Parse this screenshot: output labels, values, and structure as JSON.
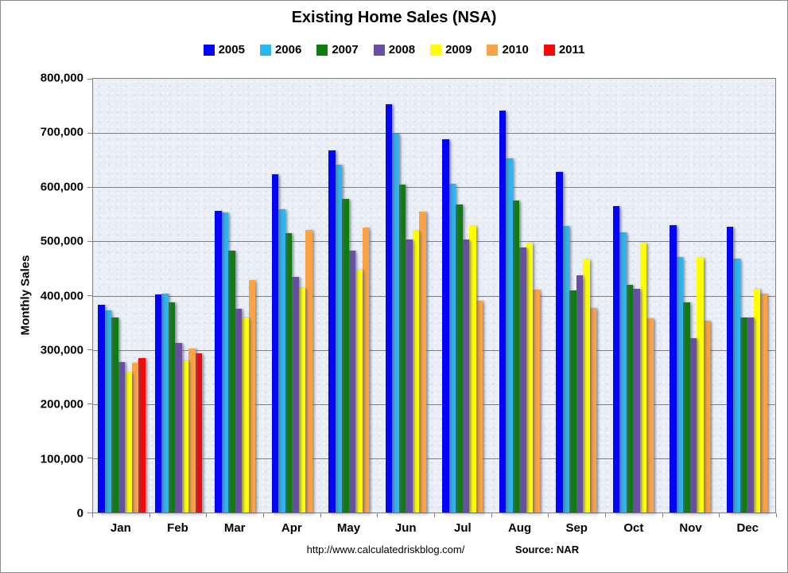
{
  "header": {
    "title": "Existing Home Sales (NSA)"
  },
  "footer": {
    "url": "http://www.calculatedriskblog.com/",
    "source": "Source: NAR"
  },
  "colors": {
    "plot_background": "#E9EEF6",
    "gridline": "#7f7f7f",
    "text": "#000000"
  },
  "chart_data": {
    "type": "bar",
    "title": "Existing Home Sales (NSA)",
    "xlabel": "",
    "ylabel": "Monthly Sales",
    "ylim": [
      0,
      800000
    ],
    "ytick_step": 100000,
    "ytick_labels_top_to_bottom": [
      "800,000",
      "700,000",
      "600,000",
      "500,000",
      "400,000",
      "300,000",
      "200,000",
      "100,000",
      "0"
    ],
    "grid": true,
    "legend_position": "top",
    "categories": [
      "Jan",
      "Feb",
      "Mar",
      "Apr",
      "May",
      "Jun",
      "Jul",
      "Aug",
      "Sep",
      "Oct",
      "Nov",
      "Dec"
    ],
    "series": [
      {
        "name": "2005",
        "color": "#0404F8",
        "values": [
          383000,
          402000,
          557000,
          624000,
          668000,
          753000,
          689000,
          742000,
          628000,
          565000,
          530000,
          527000
        ]
      },
      {
        "name": "2006",
        "color": "#2EB5EE",
        "values": [
          373000,
          403000,
          553000,
          560000,
          641000,
          699000,
          606000,
          653000,
          528000,
          516000,
          471000,
          468000
        ]
      },
      {
        "name": "2007",
        "color": "#0E7D0E",
        "values": [
          360000,
          387000,
          483000,
          515000,
          578000,
          605000,
          568000,
          575000,
          410000,
          420000,
          388000,
          360000
        ]
      },
      {
        "name": "2008",
        "color": "#6A4FA6",
        "values": [
          278000,
          313000,
          376000,
          435000,
          483000,
          504000,
          503000,
          489000,
          438000,
          413000,
          322000,
          360000
        ]
      },
      {
        "name": "2009",
        "color": "#FFFF02",
        "values": [
          258000,
          281000,
          359000,
          414000,
          448000,
          520000,
          529000,
          497000,
          467000,
          497000,
          470000,
          413000
        ]
      },
      {
        "name": "2010",
        "color": "#FCA345",
        "values": [
          276000,
          302000,
          429000,
          521000,
          525000,
          555000,
          391000,
          411000,
          377000,
          358000,
          354000,
          404000
        ]
      },
      {
        "name": "2011",
        "color": "#FB0606",
        "values": [
          285000,
          293000,
          null,
          null,
          null,
          null,
          null,
          null,
          null,
          null,
          null,
          null
        ]
      }
    ]
  }
}
